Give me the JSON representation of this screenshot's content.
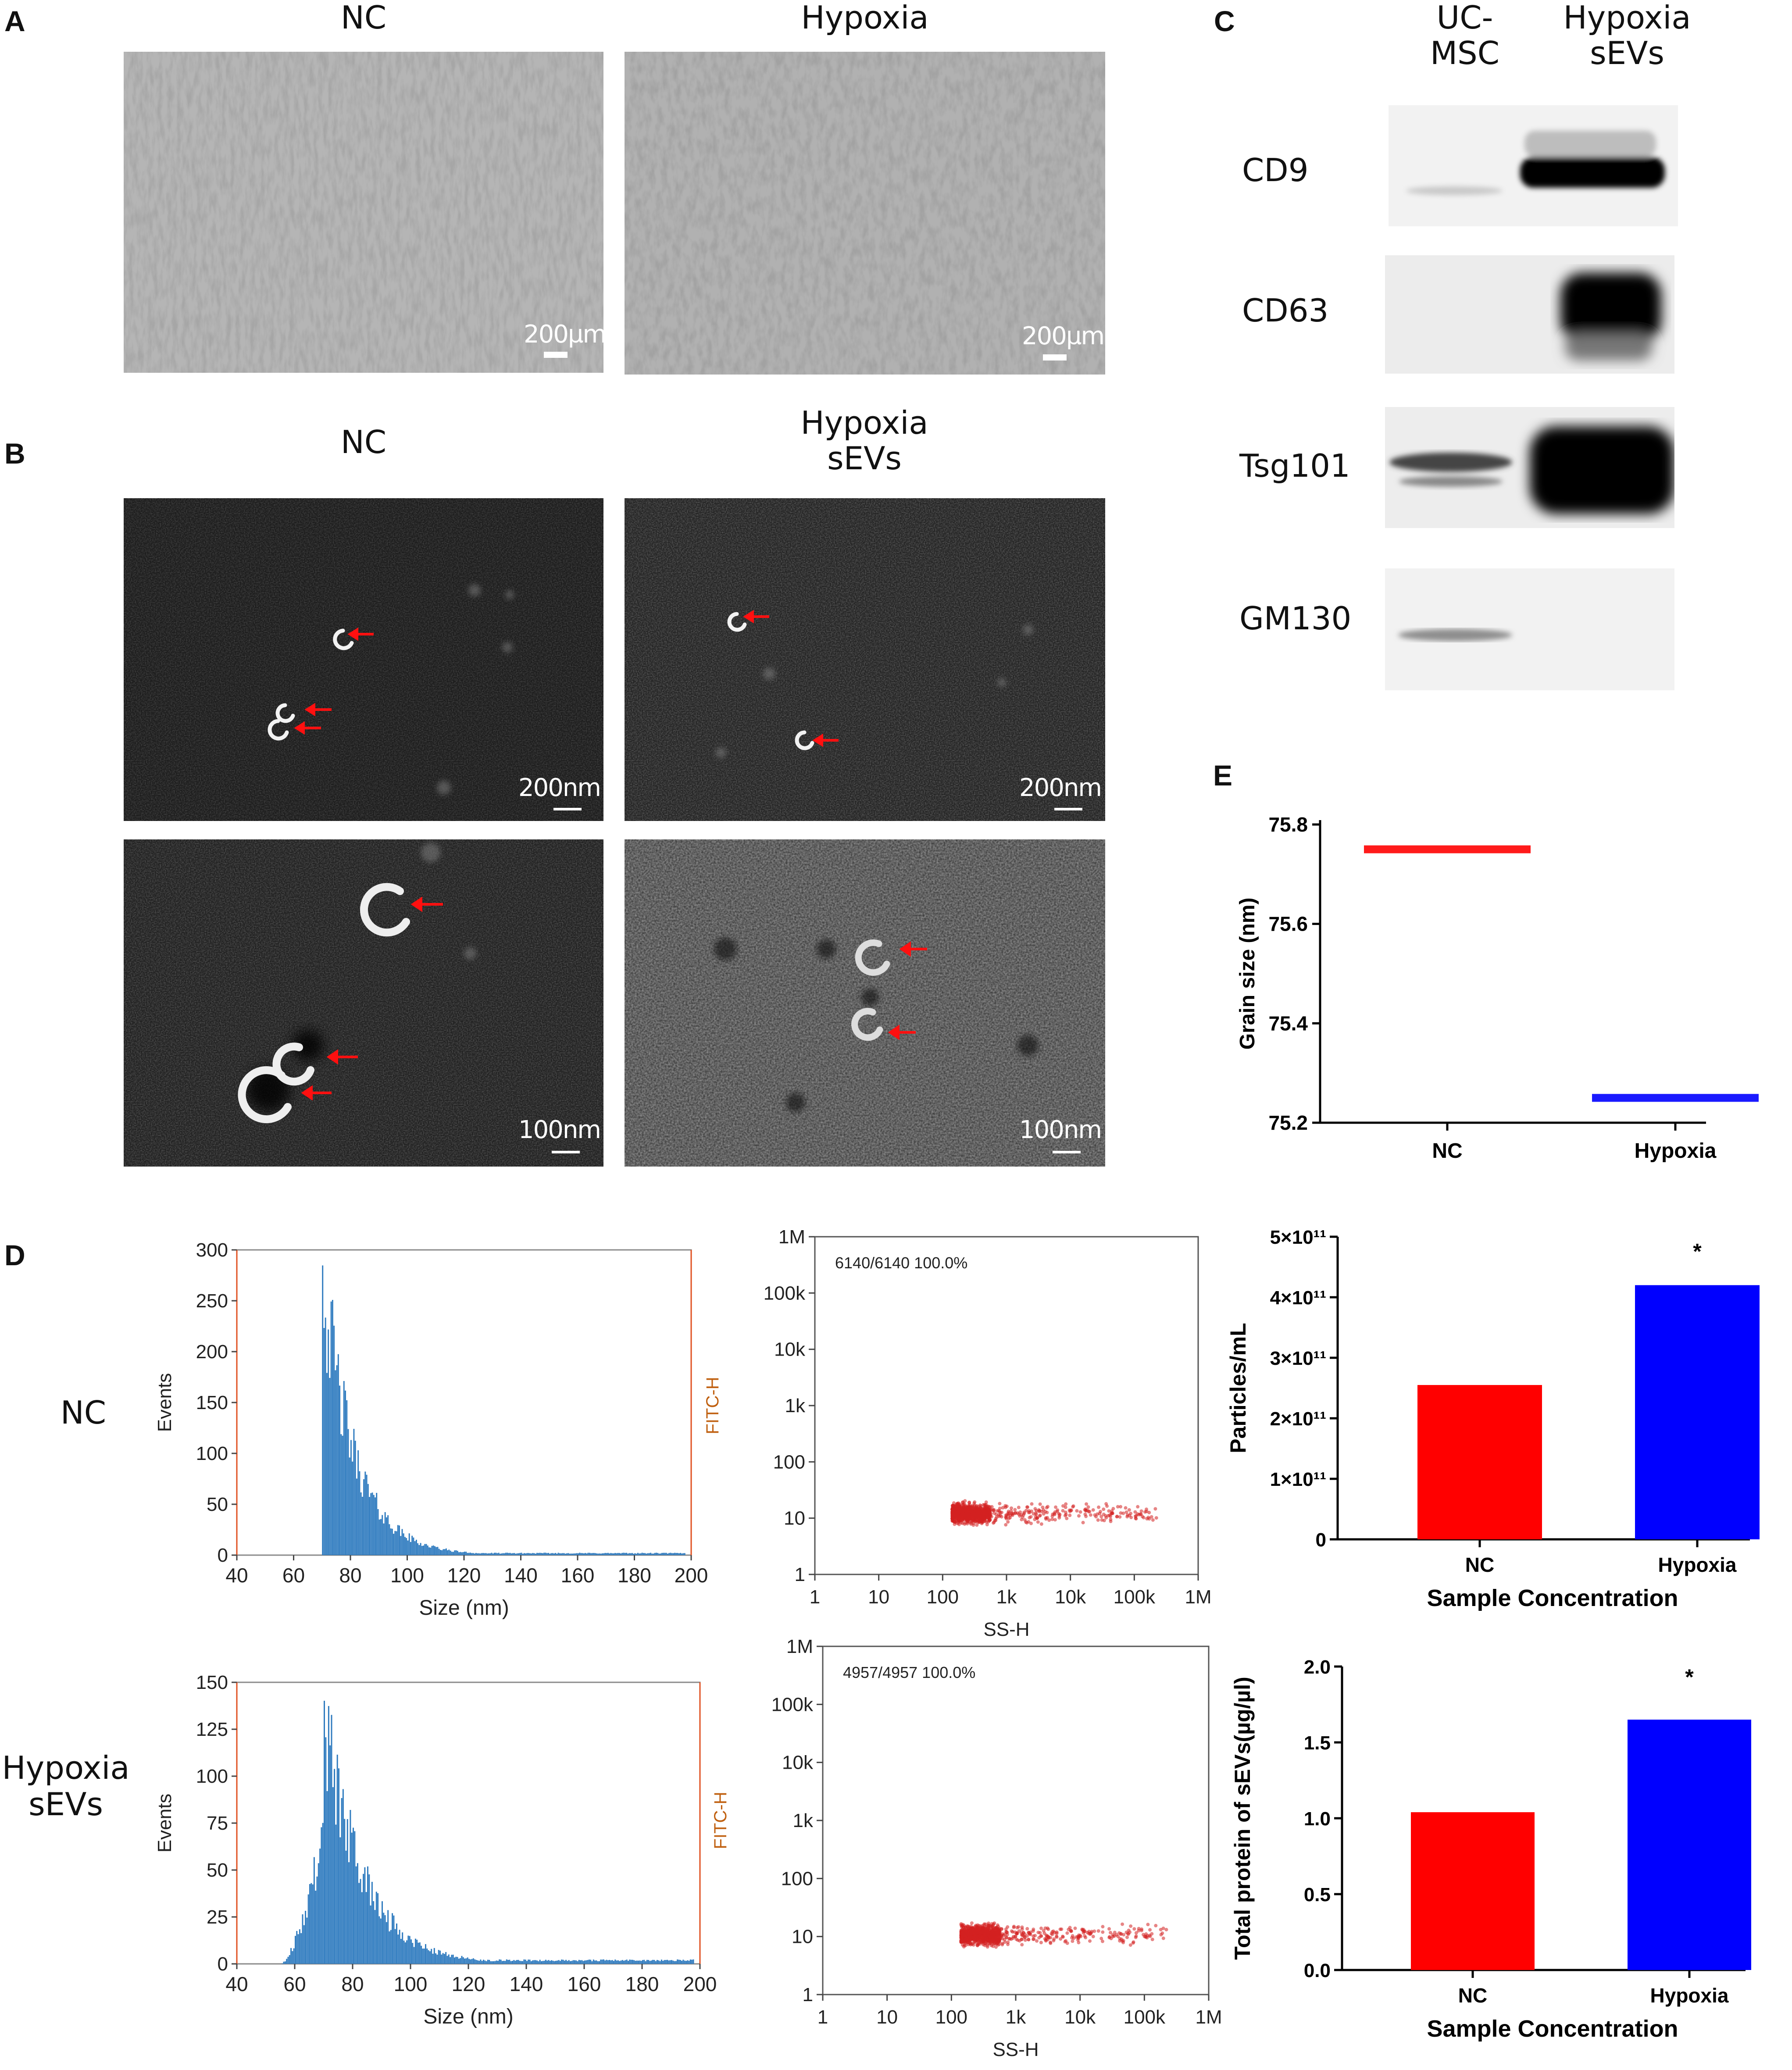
{
  "panels": {
    "A": {
      "label": "A",
      "titles": [
        "NC",
        "Hypoxia"
      ],
      "scalebar": "200µm"
    },
    "B": {
      "label": "B",
      "titles": [
        "NC",
        "Hypoxia\nsEVs"
      ],
      "scalebar_top": "200nm",
      "scalebar_bottom": "100nm"
    },
    "C": {
      "label": "C",
      "column_headers": [
        "UC-\nMSC",
        "Hypoxia\nsEVs"
      ],
      "markers": [
        "CD9",
        "CD63",
        "Tsg101",
        "GM130"
      ]
    },
    "D": {
      "label": "D",
      "row_labels": [
        "NC",
        "Hypoxia\nsEVs"
      ],
      "histograms": [
        {
          "ylabel": "Events",
          "xlabel": "Size (nm)",
          "yticks": [
            0,
            50,
            100,
            150,
            200,
            250,
            300
          ],
          "xticks": [
            40,
            60,
            80,
            100,
            120,
            140,
            160,
            180,
            200
          ],
          "ymax": 300
        },
        {
          "ylabel": "Events",
          "xlabel": "Size (nm)",
          "yticks": [
            0,
            25,
            50,
            75,
            100,
            125,
            150
          ],
          "xticks": [
            40,
            60,
            80,
            100,
            120,
            140,
            160,
            180,
            200
          ],
          "ymax": 150
        }
      ],
      "scatters": [
        {
          "gate": "6140/6140 100.0%",
          "ylabel": "FITC-H",
          "xlabel": "SS-H",
          "yticks": [
            "1",
            "10",
            "100",
            "1k",
            "10k",
            "100k",
            "1M"
          ],
          "xticks": [
            "1",
            "10",
            "100",
            "1k",
            "10k",
            "100k",
            "1M"
          ]
        },
        {
          "gate": "4957/4957 100.0%",
          "ylabel": "FITC-H",
          "xlabel": "SS-H",
          "yticks": [
            "1",
            "10",
            "100",
            "1k",
            "10k",
            "100k",
            "1M"
          ],
          "xticks": [
            "1",
            "10",
            "100",
            "1k",
            "10k",
            "100k",
            "1M"
          ]
        }
      ]
    },
    "E": {
      "label": "E"
    }
  },
  "chart_data": [
    {
      "type": "line",
      "ylabel": "Grain size (nm)",
      "categories": [
        "NC",
        "Hypoxia"
      ],
      "values": [
        75.75,
        75.25
      ],
      "colors": [
        "#ff1a1a",
        "#1a1aff"
      ],
      "ylim": [
        75.2,
        75.8
      ],
      "yticks": [
        "75.2",
        "75.4",
        "75.6",
        "75.8"
      ]
    },
    {
      "type": "bar",
      "ylabel": "Particles/mL",
      "xlabel": "Sample Concentration",
      "categories": [
        "NC",
        "Hypoxia"
      ],
      "values": [
        255000000000.0,
        420000000000.0
      ],
      "colors": [
        "#ff0000",
        "#0000ff"
      ],
      "ylim": [
        0,
        500000000000.0
      ],
      "yticks": [
        "0",
        "1×10¹¹",
        "2×10¹¹",
        "3×10¹¹",
        "4×10¹¹",
        "5×10¹¹"
      ],
      "annotation": "*"
    },
    {
      "type": "bar",
      "ylabel": "Total protein of sEVs(µg/µl)",
      "xlabel": "Sample Concentration",
      "categories": [
        "NC",
        "Hypoxia"
      ],
      "values": [
        1.04,
        1.65
      ],
      "colors": [
        "#ff0000",
        "#0000ff"
      ],
      "ylim": [
        0,
        2.0
      ],
      "yticks": [
        "0.0",
        "0.5",
        "1.0",
        "1.5",
        "2.0"
      ],
      "annotation": "*"
    }
  ]
}
